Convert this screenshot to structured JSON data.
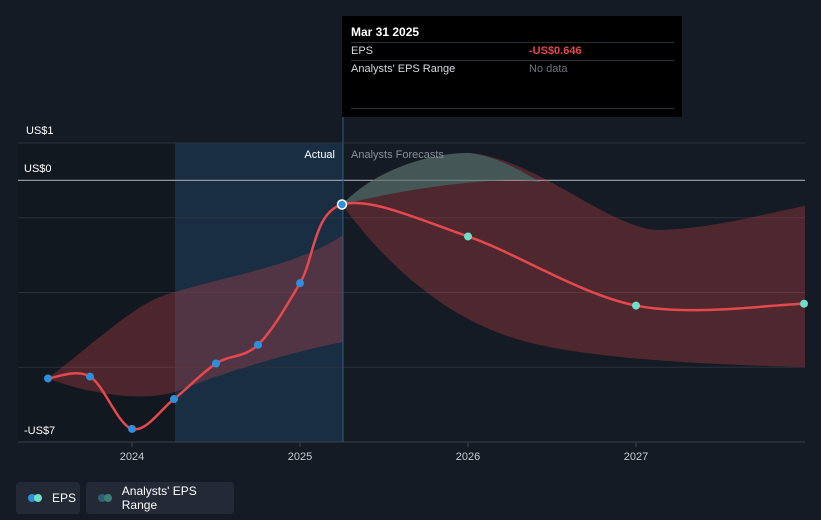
{
  "chart_data": {
    "type": "line",
    "y_labels": [
      "US$1",
      "US$0",
      "-US$7"
    ],
    "ylim": [
      -7,
      1
    ],
    "x_ticks": [
      "2024",
      "2025",
      "2026",
      "2027"
    ],
    "region_labels": {
      "actual": "Actual",
      "forecast": "Analysts Forecasts"
    },
    "eps_actual": [
      {
        "x": 2023.5,
        "y": -5.3
      },
      {
        "x": 2023.75,
        "y": -5.25
      },
      {
        "x": 2024.0,
        "y": -6.65
      },
      {
        "x": 2024.25,
        "y": -5.85
      },
      {
        "x": 2024.5,
        "y": -4.9
      },
      {
        "x": 2024.75,
        "y": -4.4
      },
      {
        "x": 2025.0,
        "y": -2.75
      },
      {
        "x": 2025.25,
        "y": -0.646
      }
    ],
    "eps_forecast": [
      {
        "x": 2025.25,
        "y": -0.646
      },
      {
        "x": 2026.0,
        "y": -1.5
      },
      {
        "x": 2027.0,
        "y": -3.35
      },
      {
        "x": 2028.0,
        "y": -3.3
      }
    ],
    "series": [
      {
        "name": "EPS",
        "color": "#e5484d"
      },
      {
        "name": "Analysts' EPS Range",
        "color": "#3c7f77"
      }
    ]
  },
  "tooltip": {
    "date": "Mar 31 2025",
    "eps_label": "EPS",
    "eps_value": "-US$0.646",
    "range_label": "Analysts' EPS Range",
    "range_value": "No data"
  },
  "legend": {
    "eps": "EPS",
    "range": "Analysts' EPS Range"
  },
  "colors": {
    "background": "#151b24",
    "eps_line": "#e5484d",
    "actual_point": "#2f8fdb",
    "forecast_point": "#6fe0c8",
    "range_fill": "#e5484d",
    "range_fill_upper": "#3c7f77",
    "past_highlight": "#1b3a57"
  }
}
